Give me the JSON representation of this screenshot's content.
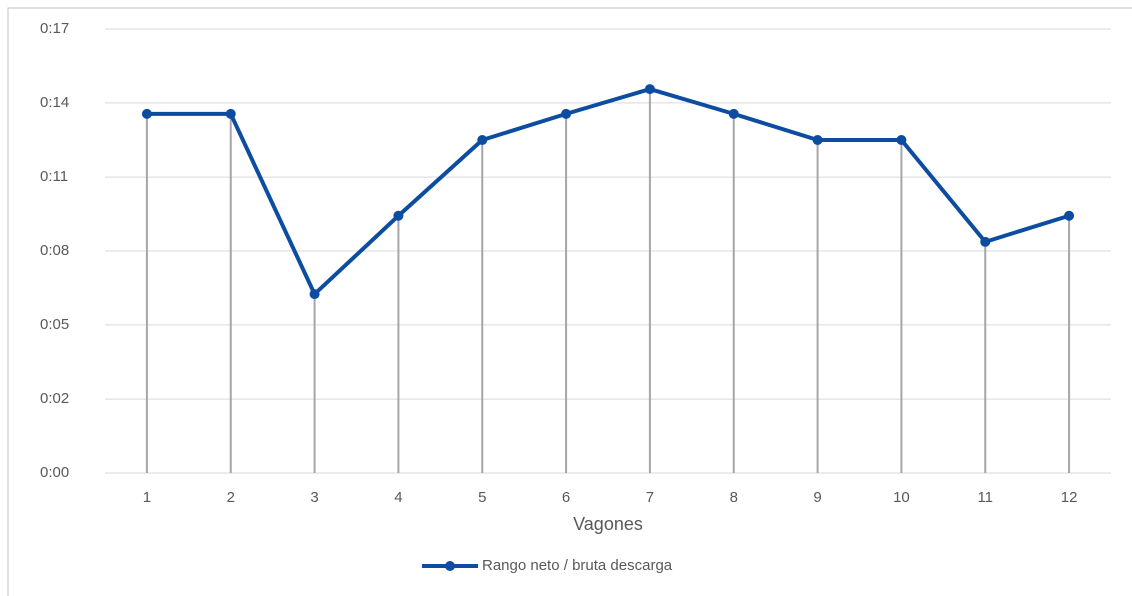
{
  "chart_data": {
    "type": "line",
    "x_label": "Vagones",
    "categories": [
      "1",
      "2",
      "3",
      "4",
      "5",
      "6",
      "7",
      "8",
      "9",
      "10",
      "11",
      "12"
    ],
    "series": [
      {
        "name": "Rango neto / bruta descarga",
        "color": "#0c4da2",
        "values": [
          13.75,
          13.75,
          6.85,
          9.85,
          12.75,
          13.75,
          14.7,
          13.75,
          12.75,
          12.75,
          8.85,
          9.85
        ]
      }
    ],
    "ylim": [
      0,
      17
    ],
    "yticks": [
      {
        "value": 0,
        "label": "0:00"
      },
      {
        "value": 2.83,
        "label": "0:02"
      },
      {
        "value": 5.67,
        "label": "0:05"
      },
      {
        "value": 8.5,
        "label": "0:08"
      },
      {
        "value": 11.33,
        "label": "0:11"
      },
      {
        "value": 14.17,
        "label": "0:14"
      },
      {
        "value": 17,
        "label": "0:17"
      }
    ],
    "grid": true,
    "drop_lines": true,
    "legend": "bottom"
  }
}
